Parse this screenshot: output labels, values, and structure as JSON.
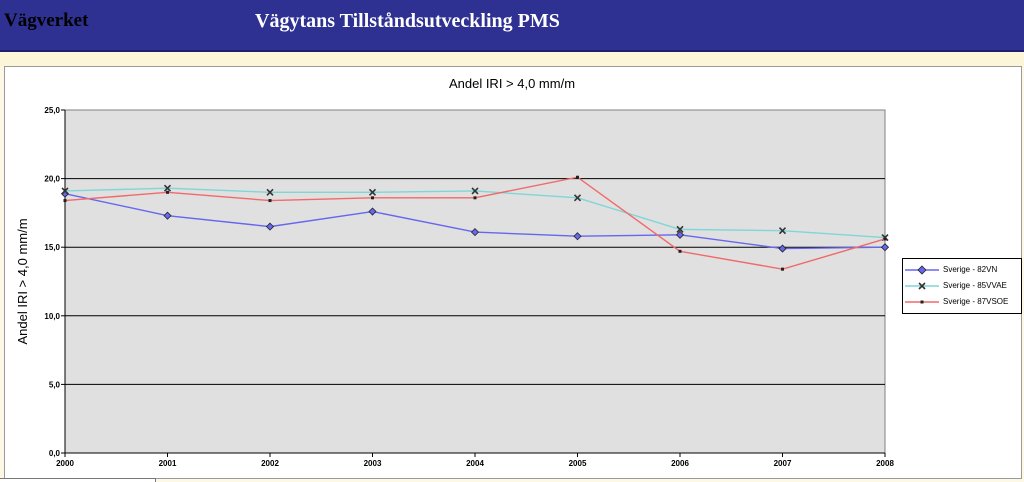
{
  "header": {
    "org": "Vägverket",
    "title": "Vägytans Tillståndsutveckling PMS"
  },
  "colors": {
    "banner": "#2e3192",
    "plot_bg": "#e0e0e0"
  },
  "chart_data": {
    "type": "line",
    "title": "Andel IRI > 4,0 mm/m",
    "xlabel": "",
    "ylabel": "Andel IRI > 4,0 mm/m",
    "ylim": [
      0,
      25
    ],
    "y_ticks": [
      "0,0",
      "5,0",
      "10,0",
      "15,0",
      "20,0",
      "25,0"
    ],
    "x": [
      "2000",
      "2001",
      "2002",
      "2003",
      "2004",
      "2005",
      "2006",
      "2007",
      "2008"
    ],
    "grid": true,
    "legend": "right",
    "series": [
      {
        "name": "Sverige - 82VN",
        "color": "#6666ee",
        "marker": "diamond",
        "values": [
          18.9,
          17.3,
          16.5,
          17.6,
          16.1,
          15.8,
          15.9,
          14.9,
          15.0
        ]
      },
      {
        "name": "Sverige - 85VVAE",
        "color": "#7fd6d6",
        "marker": "x",
        "values": [
          19.1,
          19.3,
          19.0,
          19.0,
          19.1,
          18.6,
          16.3,
          16.2,
          15.7
        ]
      },
      {
        "name": "Sverige - 87VSOE",
        "color": "#f06a6a",
        "marker": "square",
        "values": [
          18.4,
          19.0,
          18.4,
          18.6,
          18.6,
          20.1,
          14.7,
          13.4,
          15.6
        ]
      }
    ]
  }
}
